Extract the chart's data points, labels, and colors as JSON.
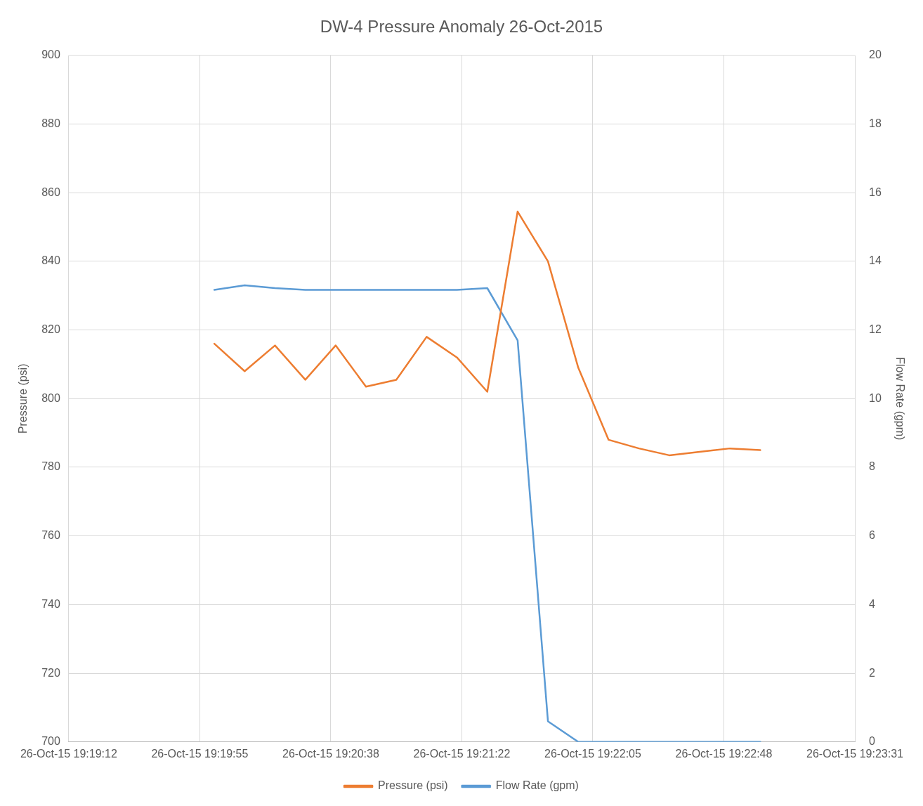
{
  "chart_data": {
    "type": "line",
    "title": "DW-4 Pressure Anomaly 26-Oct-2015",
    "ylabel": "Pressure (psi)",
    "y2label": "Flow Rate (gpm)",
    "x": [
      "2015-10-26T19:20:00",
      "2015-10-26T19:20:10",
      "2015-10-26T19:20:20",
      "2015-10-26T19:20:30",
      "2015-10-26T19:20:40",
      "2015-10-26T19:20:50",
      "2015-10-26T19:21:00",
      "2015-10-26T19:21:10",
      "2015-10-26T19:21:20",
      "2015-10-26T19:21:30",
      "2015-10-26T19:21:40",
      "2015-10-26T19:21:50",
      "2015-10-26T19:22:00",
      "2015-10-26T19:22:10",
      "2015-10-26T19:22:20",
      "2015-10-26T19:22:30",
      "2015-10-26T19:22:40",
      "2015-10-26T19:22:50",
      "2015-10-26T19:23:00"
    ],
    "series": [
      {
        "name": "Pressure (psi)",
        "color": "#ed7d31",
        "values": [
          816,
          808,
          815.5,
          805.5,
          815.5,
          803.5,
          805.5,
          818,
          812,
          802,
          854.5,
          840,
          809,
          788,
          785.5,
          783.5,
          784.5,
          785.5,
          785
        ]
      },
      {
        "name": "Flow Rate (gpm)",
        "color": "#5b9bd5",
        "axis": "y2",
        "values": [
          13.17,
          13.3,
          13.22,
          13.17,
          13.17,
          13.17,
          13.17,
          13.17,
          13.17,
          13.22,
          11.7,
          0.6,
          0,
          0,
          0,
          0,
          0,
          0,
          0
        ]
      }
    ],
    "xlim": [
      "2015-10-26T19:19:12",
      "2015-10-26T19:23:31.200"
    ],
    "xticks": [
      {
        "value": "2015-10-26T19:19:12",
        "label": "26-Oct-15 19:19:12"
      },
      {
        "value": "2015-10-26T19:19:55.200",
        "label": "26-Oct-15 19:19:55"
      },
      {
        "value": "2015-10-26T19:20:38.400",
        "label": "26-Oct-15 19:20:38"
      },
      {
        "value": "2015-10-26T19:21:21.600",
        "label": "26-Oct-15 19:21:22"
      },
      {
        "value": "2015-10-26T19:22:04.800",
        "label": "26-Oct-15 19:22:05"
      },
      {
        "value": "2015-10-26T19:22:48",
        "label": "26-Oct-15 19:22:48"
      },
      {
        "value": "2015-10-26T19:23:31.200",
        "label": "26-Oct-15 19:23:31"
      }
    ],
    "ylim": [
      700,
      900
    ],
    "yticks": [
      700,
      720,
      740,
      760,
      780,
      800,
      820,
      840,
      860,
      880,
      900
    ],
    "y2lim": [
      0,
      20
    ],
    "y2ticks": [
      0,
      2,
      4,
      6,
      8,
      10,
      12,
      14,
      16,
      18,
      20
    ],
    "grid": true,
    "legend": "bottom",
    "marker": "none",
    "line_style": "solid"
  }
}
